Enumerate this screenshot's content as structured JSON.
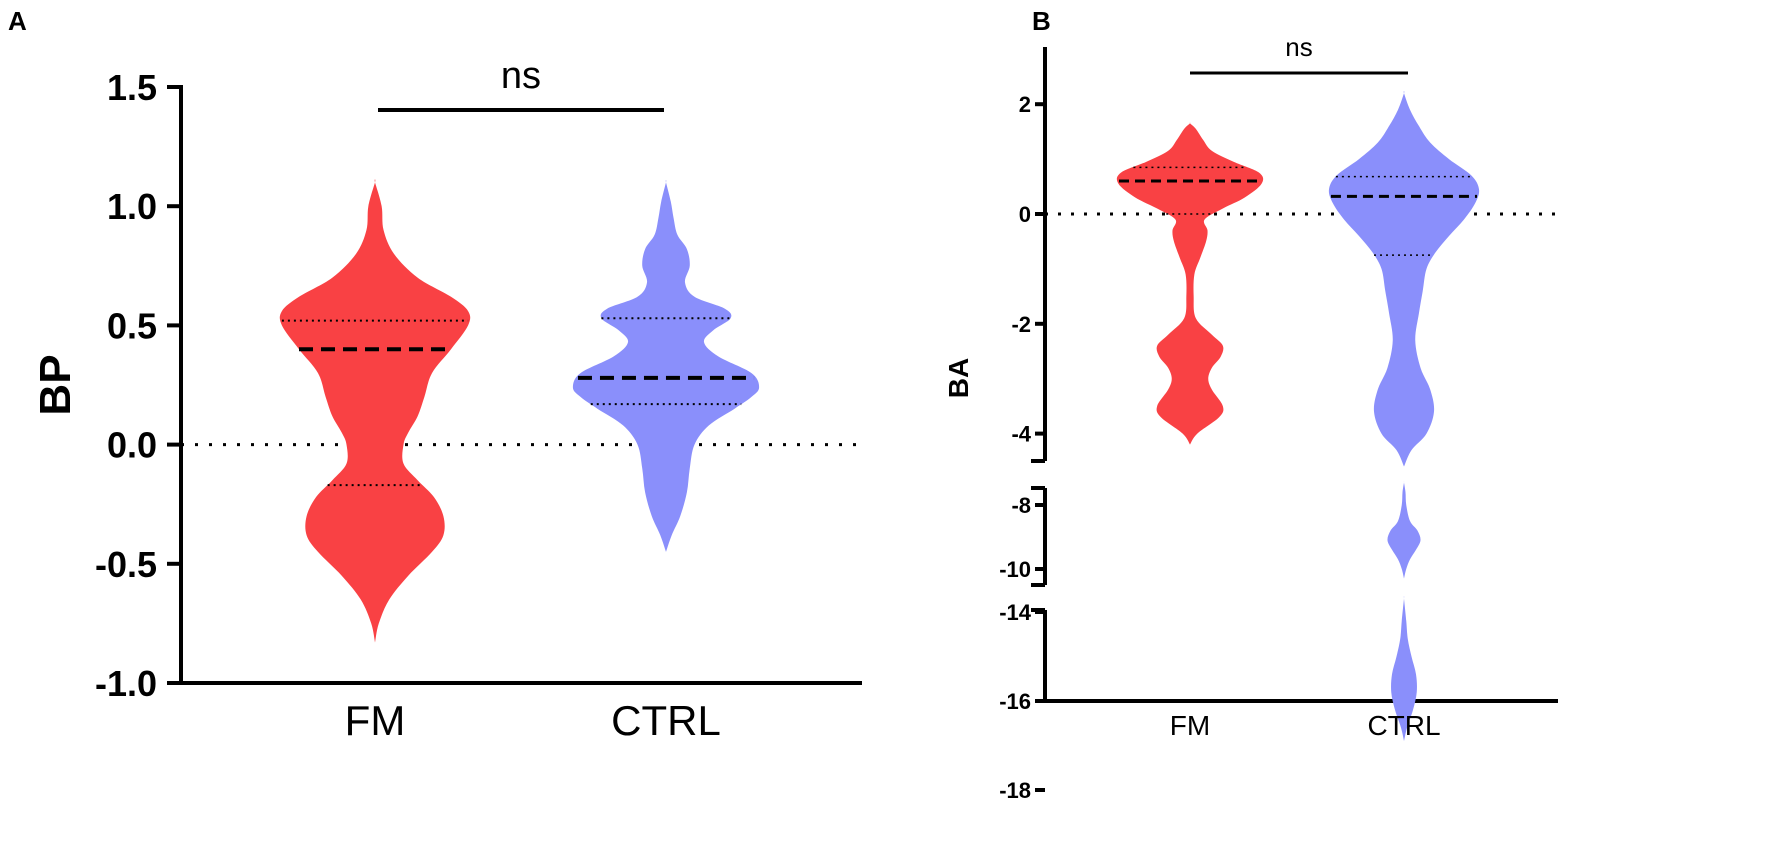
{
  "chart_data": [
    {
      "panel": "A",
      "type": "violin",
      "ylabel": "BP",
      "ylim": [
        -1.0,
        1.5
      ],
      "yticks": [
        -1.0,
        -0.5,
        0.0,
        0.5,
        1.0,
        1.5
      ],
      "ytick_labels": [
        "-1.0",
        "-0.5",
        "0.0",
        "0.5",
        "1.0",
        "1.5"
      ],
      "categories": [
        "FM",
        "CTRL"
      ],
      "reference_line": 0.0,
      "annotation": "ns",
      "series": [
        {
          "name": "FM",
          "color": "#f94144",
          "median": 0.4,
          "quartiles": [
            -0.17,
            0.52
          ],
          "range": [
            -0.83,
            1.1
          ],
          "density": [
            [
              -0.83,
              0.0
            ],
            [
              -0.75,
              0.04
            ],
            [
              -0.65,
              0.15
            ],
            [
              -0.55,
              0.35
            ],
            [
              -0.45,
              0.6
            ],
            [
              -0.38,
              0.72
            ],
            [
              -0.3,
              0.72
            ],
            [
              -0.22,
              0.62
            ],
            [
              -0.15,
              0.45
            ],
            [
              -0.08,
              0.3
            ],
            [
              0.0,
              0.3
            ],
            [
              0.05,
              0.35
            ],
            [
              0.12,
              0.45
            ],
            [
              0.2,
              0.52
            ],
            [
              0.3,
              0.6
            ],
            [
              0.4,
              0.8
            ],
            [
              0.5,
              0.98
            ],
            [
              0.56,
              0.98
            ],
            [
              0.62,
              0.8
            ],
            [
              0.7,
              0.45
            ],
            [
              0.8,
              0.2
            ],
            [
              0.9,
              0.09
            ],
            [
              1.0,
              0.07
            ],
            [
              1.1,
              0.0
            ]
          ]
        },
        {
          "name": "CTRL",
          "color": "#8a8ffb",
          "median": 0.28,
          "quartiles": [
            0.17,
            0.53
          ],
          "range": [
            -0.45,
            1.1
          ],
          "density": [
            [
              -0.45,
              0.0
            ],
            [
              -0.38,
              0.06
            ],
            [
              -0.3,
              0.15
            ],
            [
              -0.2,
              0.22
            ],
            [
              -0.1,
              0.25
            ],
            [
              0.0,
              0.3
            ],
            [
              0.08,
              0.45
            ],
            [
              0.15,
              0.72
            ],
            [
              0.2,
              0.9
            ],
            [
              0.24,
              0.98
            ],
            [
              0.3,
              0.9
            ],
            [
              0.37,
              0.55
            ],
            [
              0.43,
              0.4
            ],
            [
              0.48,
              0.5
            ],
            [
              0.53,
              0.68
            ],
            [
              0.57,
              0.62
            ],
            [
              0.62,
              0.3
            ],
            [
              0.68,
              0.2
            ],
            [
              0.75,
              0.25
            ],
            [
              0.82,
              0.22
            ],
            [
              0.88,
              0.12
            ],
            [
              0.95,
              0.08
            ],
            [
              1.02,
              0.05
            ],
            [
              1.1,
              0.0
            ]
          ]
        }
      ]
    },
    {
      "panel": "B",
      "type": "violin",
      "ylabel": "BA",
      "axis_breaks": [
        [
          -7.5,
          -4.5
        ],
        [
          -13.5,
          -10.5
        ]
      ],
      "yticks": [
        2,
        0,
        -2,
        -4,
        -8,
        -10,
        -14,
        -16,
        -18
      ],
      "ytick_labels": [
        "2",
        "0",
        "-2",
        "-4",
        "-8",
        "-10",
        "-14",
        "-16",
        "-18"
      ],
      "categories": [
        "FM",
        "CTRL"
      ],
      "reference_line": 0,
      "annotation": "ns",
      "series": [
        {
          "name": "FM",
          "color": "#f94144",
          "median": 0.6,
          "quartiles": [
            0.0,
            0.85
          ],
          "range": [
            -4.2,
            1.65
          ],
          "density": [
            [
              -4.2,
              0.0
            ],
            [
              -4.0,
              0.1
            ],
            [
              -3.7,
              0.4
            ],
            [
              -3.5,
              0.45
            ],
            [
              -3.2,
              0.3
            ],
            [
              -3.0,
              0.25
            ],
            [
              -2.8,
              0.3
            ],
            [
              -2.6,
              0.42
            ],
            [
              -2.4,
              0.45
            ],
            [
              -2.2,
              0.3
            ],
            [
              -1.9,
              0.08
            ],
            [
              -1.5,
              0.05
            ],
            [
              -1.1,
              0.06
            ],
            [
              -0.8,
              0.14
            ],
            [
              -0.5,
              0.22
            ],
            [
              -0.3,
              0.24
            ],
            [
              -0.1,
              0.2
            ],
            [
              0.1,
              0.45
            ],
            [
              0.3,
              0.75
            ],
            [
              0.55,
              0.98
            ],
            [
              0.75,
              0.95
            ],
            [
              0.95,
              0.6
            ],
            [
              1.15,
              0.3
            ],
            [
              1.35,
              0.18
            ],
            [
              1.55,
              0.08
            ],
            [
              1.65,
              0.0
            ]
          ]
        },
        {
          "name": "CTRL",
          "color": "#8a8ffb",
          "median": 0.32,
          "quartiles": [
            -0.75,
            0.68
          ],
          "range": [
            -4.6,
            2.2
          ],
          "density": [
            [
              -4.6,
              0.0
            ],
            [
              -4.3,
              0.1
            ],
            [
              -4.0,
              0.3
            ],
            [
              -3.6,
              0.4
            ],
            [
              -3.2,
              0.35
            ],
            [
              -2.8,
              0.22
            ],
            [
              -2.3,
              0.15
            ],
            [
              -1.8,
              0.2
            ],
            [
              -1.4,
              0.25
            ],
            [
              -1.0,
              0.3
            ],
            [
              -0.7,
              0.42
            ],
            [
              -0.4,
              0.6
            ],
            [
              -0.1,
              0.8
            ],
            [
              0.2,
              0.95
            ],
            [
              0.45,
              1.0
            ],
            [
              0.7,
              0.9
            ],
            [
              1.0,
              0.6
            ],
            [
              1.3,
              0.35
            ],
            [
              1.6,
              0.2
            ],
            [
              1.9,
              0.08
            ],
            [
              2.2,
              0.0
            ]
          ]
        },
        {
          "name": "CTRL",
          "segment": "mid",
          "color": "#8a8ffb",
          "range": [
            -10.3,
            -7.3
          ],
          "density": [
            [
              -10.3,
              0.0
            ],
            [
              -10.0,
              0.03
            ],
            [
              -9.7,
              0.08
            ],
            [
              -9.4,
              0.16
            ],
            [
              -9.1,
              0.22
            ],
            [
              -8.8,
              0.18
            ],
            [
              -8.5,
              0.08
            ],
            [
              -8.0,
              0.03
            ],
            [
              -7.6,
              0.02
            ],
            [
              -7.3,
              0.0
            ]
          ]
        },
        {
          "name": "CTRL",
          "segment": "low",
          "color": "#8a8ffb",
          "range": [
            -16.9,
            -13.7
          ],
          "density": [
            [
              -16.9,
              0.0
            ],
            [
              -16.6,
              0.04
            ],
            [
              -16.2,
              0.12
            ],
            [
              -15.8,
              0.17
            ],
            [
              -15.4,
              0.16
            ],
            [
              -15.0,
              0.1
            ],
            [
              -14.6,
              0.05
            ],
            [
              -14.2,
              0.03
            ],
            [
              -13.7,
              0.0
            ]
          ]
        }
      ]
    }
  ],
  "labels": {
    "panel_a": "A",
    "panel_b": "B"
  }
}
